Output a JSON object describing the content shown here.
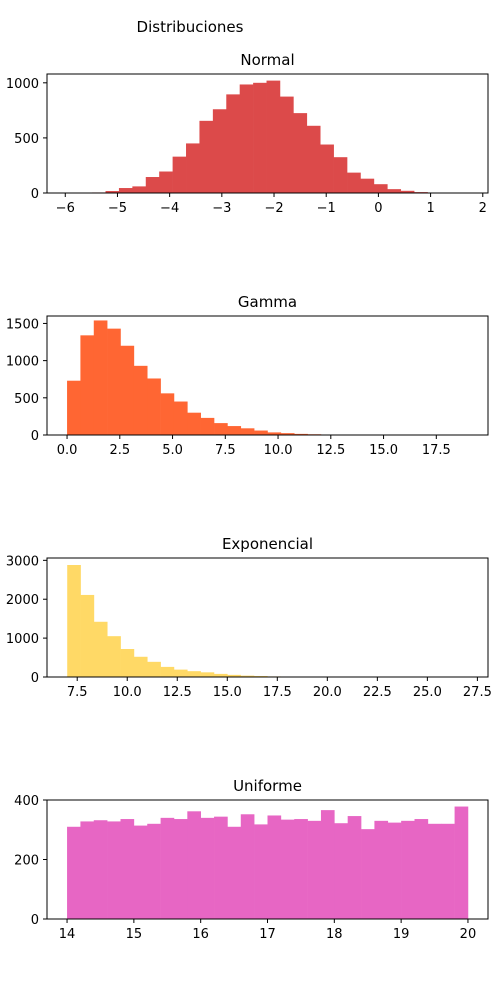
{
  "suptitle": "Distribuciones",
  "chart_data": [
    {
      "type": "bar",
      "title": "Normal",
      "color": "#dc4a4a",
      "xlim": [
        -6.35,
        2.1
      ],
      "ylim": [
        0,
        1080
      ],
      "xticks": [
        -6,
        -5,
        -4,
        -3,
        -2,
        -1,
        0,
        1,
        2
      ],
      "xtick_labels": [
        "−6",
        "−5",
        "−4",
        "−3",
        "−2",
        "−1",
        "0",
        "1",
        "2"
      ],
      "yticks": [
        0,
        500,
        1000
      ],
      "ytick_labels": [
        "0",
        "500",
        "1000"
      ],
      "bin_start": -6.0,
      "bin_width": 0.2571,
      "values": [
        1,
        3,
        5,
        18,
        45,
        60,
        145,
        195,
        330,
        450,
        655,
        760,
        895,
        985,
        1000,
        1020,
        875,
        725,
        610,
        440,
        325,
        185,
        130,
        80,
        35,
        20,
        8,
        4,
        3,
        1
      ]
    },
    {
      "type": "bar",
      "title": "Gamma",
      "color": "#ff6633",
      "xlim": [
        -0.95,
        19.95
      ],
      "ylim": [
        0,
        1600
      ],
      "xticks": [
        0,
        2.5,
        5,
        7.5,
        10,
        12.5,
        15,
        17.5
      ],
      "xtick_labels": [
        "0.0",
        "2.5",
        "5.0",
        "7.5",
        "10.0",
        "12.5",
        "15.0",
        "17.5"
      ],
      "yticks": [
        0,
        500,
        1000,
        1500
      ],
      "ytick_labels": [
        "0",
        "500",
        "1000",
        "1500"
      ],
      "bin_start": 0.0,
      "bin_width": 0.6333,
      "values": [
        730,
        1340,
        1540,
        1430,
        1200,
        930,
        760,
        560,
        450,
        300,
        230,
        160,
        120,
        90,
        60,
        35,
        25,
        15,
        10,
        5,
        4,
        3,
        2,
        1,
        1,
        1,
        1,
        0,
        1,
        1
      ]
    },
    {
      "type": "bar",
      "title": "Exponencial",
      "color": "#ffd966",
      "xlim": [
        5.99,
        28.03
      ],
      "ylim": [
        0,
        3060
      ],
      "xticks": [
        7.5,
        10,
        12.5,
        15,
        17.5,
        20,
        22.5,
        25,
        27.5
      ],
      "xtick_labels": [
        "7.5",
        "10.0",
        "12.5",
        "15.0",
        "17.5",
        "20.0",
        "22.5",
        "25.0",
        "27.5"
      ],
      "yticks": [
        0,
        1000,
        2000,
        3000
      ],
      "ytick_labels": [
        "0",
        "1000",
        "2000",
        "3000"
      ],
      "bin_start": 7.0,
      "bin_width": 0.6667,
      "values": [
        2880,
        2110,
        1420,
        1050,
        720,
        520,
        390,
        260,
        190,
        150,
        120,
        80,
        55,
        35,
        25,
        15,
        10,
        7,
        5,
        3,
        2,
        2,
        1,
        1,
        1,
        0,
        0,
        0,
        0,
        1
      ]
    },
    {
      "type": "bar",
      "title": "Uniforme",
      "color": "#e766c4",
      "xlim": [
        13.7,
        20.3
      ],
      "ylim": [
        0,
        400
      ],
      "xticks": [
        14,
        15,
        16,
        17,
        18,
        19,
        20
      ],
      "xtick_labels": [
        "14",
        "15",
        "16",
        "17",
        "18",
        "19",
        "20"
      ],
      "yticks": [
        0,
        200,
        400
      ],
      "ytick_labels": [
        "0",
        "200",
        "400"
      ],
      "bin_start": 14.0,
      "bin_width": 0.2,
      "values": [
        310,
        328,
        332,
        328,
        336,
        314,
        320,
        340,
        336,
        362,
        340,
        344,
        310,
        352,
        318,
        348,
        334,
        336,
        330,
        366,
        322,
        346,
        302,
        330,
        324,
        330,
        336,
        320,
        320,
        378
      ]
    }
  ]
}
